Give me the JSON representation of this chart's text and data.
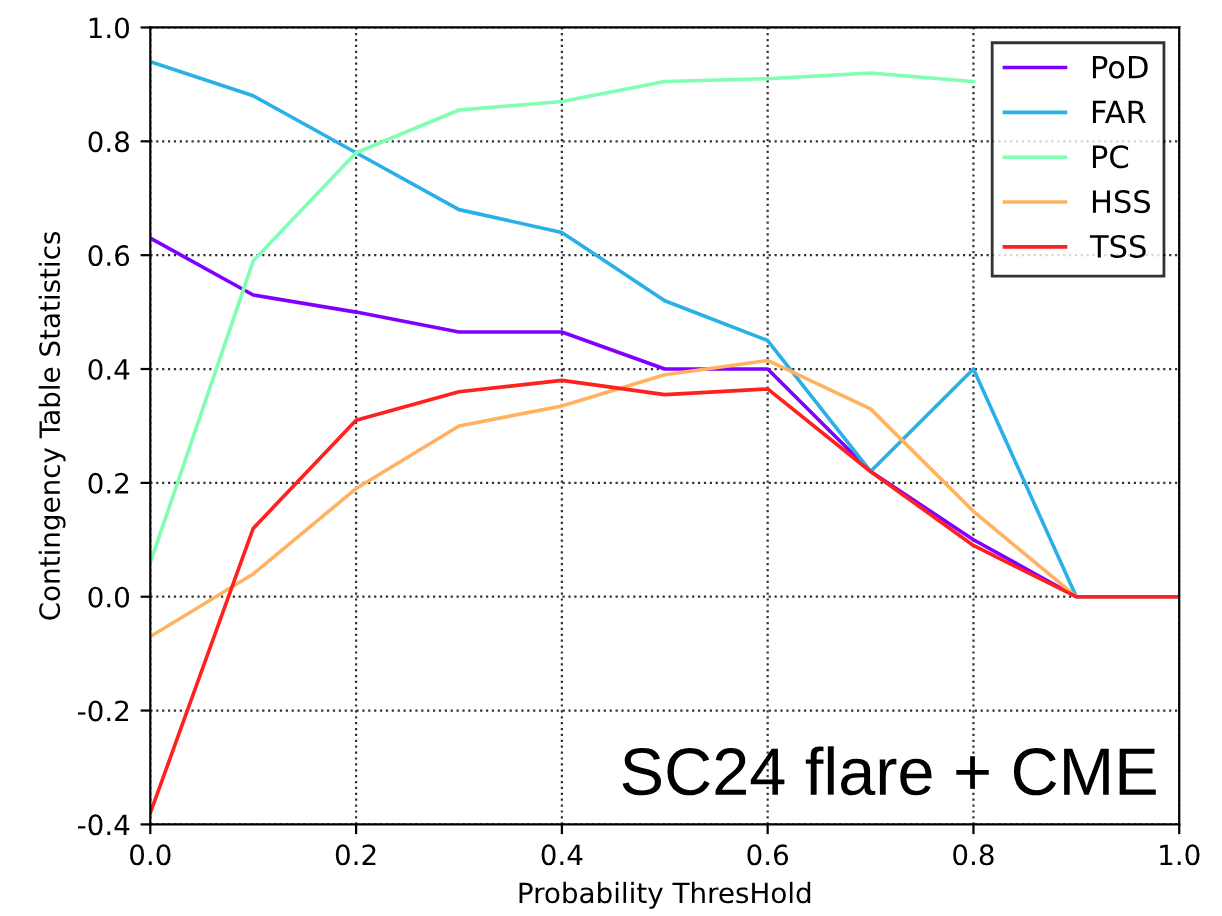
{
  "chart_data": {
    "type": "line",
    "xlabel": "Probability ThresHold",
    "ylabel": "Contingency Table Statistics",
    "x": [
      0,
      0.1,
      0.2,
      0.3,
      0.4,
      0.5,
      0.6,
      0.7,
      0.8,
      0.9,
      1.0
    ],
    "series": [
      {
        "name": "PoD",
        "color": "#8000ff",
        "values": [
          0.63,
          0.53,
          0.5,
          0.465,
          0.465,
          0.4,
          0.4,
          0.22,
          0.1,
          0,
          0
        ]
      },
      {
        "name": "FAR",
        "color": "#2ab0e8",
        "values": [
          0.94,
          0.88,
          0.78,
          0.68,
          0.64,
          0.52,
          0.45,
          0.22,
          0.4,
          0,
          0
        ]
      },
      {
        "name": "PC",
        "color": "#80ffb4",
        "values": [
          0.06,
          0.59,
          0.78,
          0.855,
          0.87,
          0.905,
          0.91,
          0.92,
          0.905,
          null,
          null
        ]
      },
      {
        "name": "HSS",
        "color": "#ffb360",
        "values": [
          -0.07,
          0.04,
          0.19,
          0.3,
          0.335,
          0.39,
          0.415,
          0.33,
          0.15,
          0,
          0
        ]
      },
      {
        "name": "TSS",
        "color": "#ff2020",
        "values": [
          -0.38,
          0.12,
          0.31,
          0.36,
          0.38,
          0.355,
          0.365,
          0.22,
          0.09,
          0,
          0
        ]
      }
    ],
    "xlim": [
      0,
      1.0
    ],
    "xticks": [
      {
        "value": 0,
        "label": "0.0"
      },
      0.2,
      0.4,
      0.6,
      0.8,
      {
        "value": 1.0,
        "label": "1.0"
      }
    ],
    "ylim": [
      -0.4,
      1.0
    ],
    "yticks": [
      -0.4,
      -0.2,
      {
        "value": 0,
        "label": "0.0"
      },
      0.2,
      0.4,
      0.6,
      0.8,
      {
        "value": 1.0,
        "label": "1.0"
      }
    ],
    "grid": true,
    "legend": "top right",
    "marker": "none",
    "line_style": "solid",
    "annotations": [
      "SC24 flare + CME"
    ]
  }
}
